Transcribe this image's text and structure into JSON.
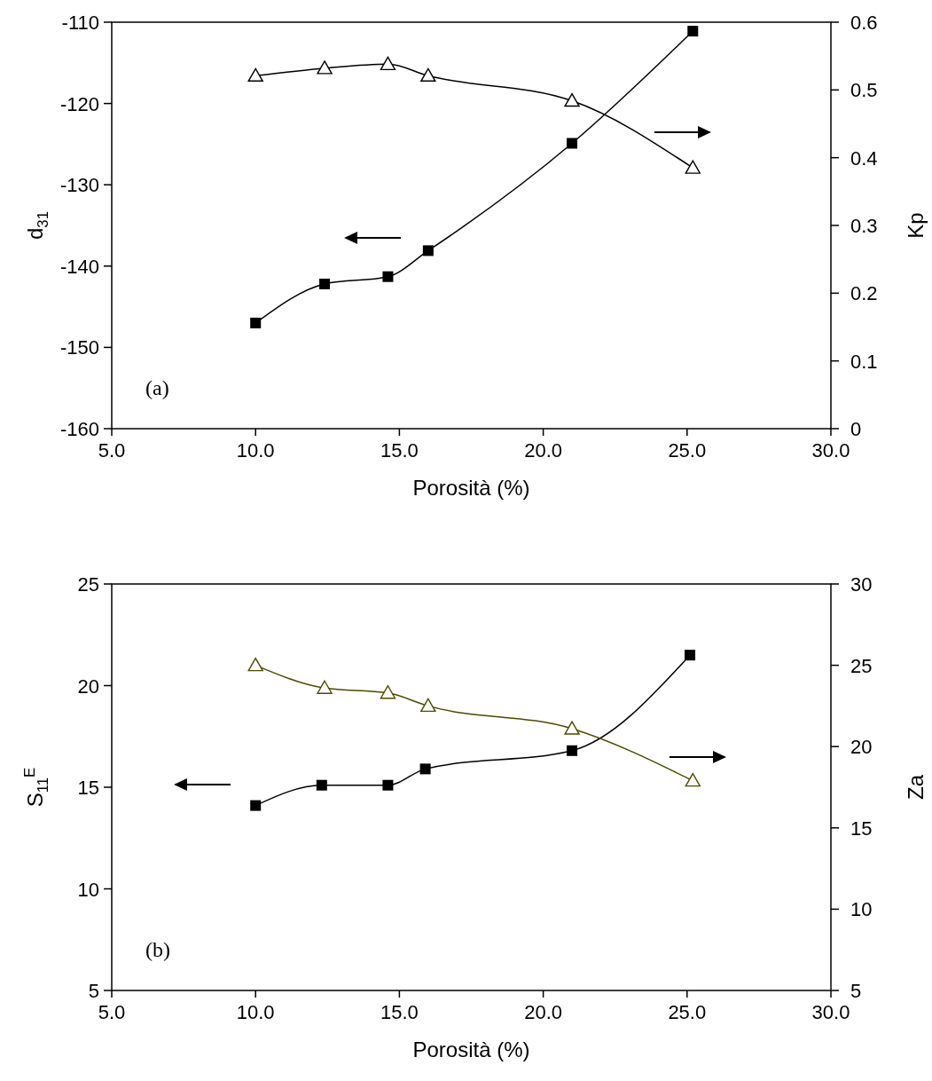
{
  "chart_data": [
    {
      "type": "line",
      "xlabel": "Porosità (%)",
      "ylabel": "d$_{31}$",
      "y2label": "Kp",
      "xlim": [
        5,
        30
      ],
      "xticks": [
        {
          "value": 5,
          "label": "5.0"
        },
        {
          "value": 10,
          "label": "10.0"
        },
        {
          "value": 15,
          "label": "15.0"
        },
        {
          "value": 20,
          "label": "20.0"
        },
        {
          "value": 25,
          "label": "25.0"
        },
        {
          "value": 30,
          "label": "30.0"
        }
      ],
      "ylim": [
        -160,
        -110
      ],
      "yticks": [
        -160,
        -150,
        -140,
        -130,
        -120,
        -110
      ],
      "y2lim": [
        0,
        0.6
      ],
      "y2ticks": [
        0,
        0.1,
        0.2,
        0.3,
        0.4,
        0.5,
        0.6
      ],
      "series": [
        {
          "color": "#000000",
          "marker": "square",
          "x": [
            10.0,
            12.4,
            14.6,
            16.0,
            21.0,
            25.2
          ],
          "values": [
            -147.0,
            -142.2,
            -141.3,
            -138.1,
            -124.9,
            -111.1
          ]
        },
        {
          "color": "#000000",
          "marker": "triangle",
          "axis": "y2",
          "x": [
            10.0,
            12.4,
            14.6,
            16.0,
            21.0,
            25.2
          ],
          "values": [
            0.521,
            0.532,
            0.538,
            0.521,
            0.484,
            0.385
          ]
        }
      ],
      "annotations": [
        "(a)"
      ]
    },
    {
      "type": "line",
      "xlabel": "Porosità (%)",
      "ylabel": "S$_{11}$$^{E}$",
      "y2label": "Za",
      "xlim": [
        5,
        30
      ],
      "xticks": [
        {
          "value": 5,
          "label": "5.0"
        },
        {
          "value": 10,
          "label": "10.0"
        },
        {
          "value": 15,
          "label": "15.0"
        },
        {
          "value": 20,
          "label": "20.0"
        },
        {
          "value": 25,
          "label": "25.0"
        },
        {
          "value": 30,
          "label": "30.0"
        }
      ],
      "ylim": [
        5,
        25
      ],
      "yticks": [
        5,
        10,
        15,
        20,
        25
      ],
      "y2lim": [
        5,
        30
      ],
      "y2ticks": [
        5,
        10,
        15,
        20,
        25,
        30
      ],
      "series": [
        {
          "color": "#000000",
          "marker": "square",
          "x": [
            10.0,
            12.3,
            14.6,
            15.9,
            21.0,
            25.1
          ],
          "values": [
            14.1,
            15.1,
            15.1,
            15.9,
            16.8,
            21.5
          ]
        },
        {
          "color": "#4b4b00",
          "marker": "triangle",
          "axis": "y2",
          "x": [
            10.0,
            12.4,
            14.6,
            16.0,
            21.0,
            25.2
          ],
          "values": [
            25.0,
            23.6,
            23.3,
            22.5,
            21.1,
            17.9
          ]
        }
      ],
      "annotations": [
        "(b)"
      ]
    }
  ]
}
